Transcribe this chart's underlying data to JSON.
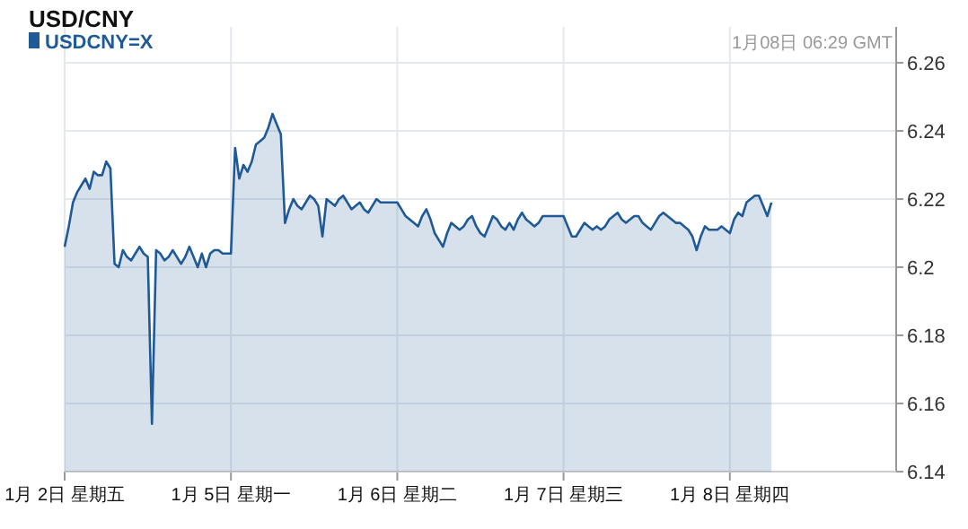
{
  "chart_data": {
    "type": "area",
    "title": "USD/CNY",
    "annotations": [
      "1月08日 06:29 GMT"
    ],
    "categories": [
      "1月  2日  星期五",
      null,
      null,
      null,
      null,
      null,
      null,
      null,
      null,
      null,
      null,
      null,
      null,
      null,
      null,
      null,
      null,
      null,
      null,
      null,
      null,
      null,
      null,
      null,
      null,
      null,
      null,
      null,
      null,
      null,
      null,
      null,
      null,
      null,
      null,
      null,
      null,
      null,
      null,
      null,
      "1月  5日  星期一",
      null,
      null,
      null,
      null,
      null,
      null,
      null,
      null,
      null,
      null,
      null,
      null,
      null,
      null,
      null,
      null,
      null,
      null,
      null,
      null,
      null,
      null,
      null,
      null,
      null,
      null,
      null,
      null,
      null,
      null,
      null,
      null,
      null,
      null,
      null,
      null,
      null,
      null,
      null,
      "1月  6日  星期二",
      null,
      null,
      null,
      null,
      null,
      null,
      null,
      null,
      null,
      null,
      null,
      null,
      null,
      null,
      null,
      null,
      null,
      null,
      null,
      null,
      null,
      null,
      null,
      null,
      null,
      null,
      null,
      null,
      null,
      null,
      null,
      null,
      null,
      null,
      null,
      null,
      null,
      null,
      null,
      "1月  7日  星期三",
      null,
      null,
      null,
      null,
      null,
      null,
      null,
      null,
      null,
      null,
      null,
      null,
      null,
      null,
      null,
      null,
      null,
      null,
      null,
      null,
      null,
      null,
      null,
      null,
      null,
      null,
      null,
      null,
      null,
      null,
      null,
      null,
      null,
      null,
      null,
      null,
      null,
      null,
      null,
      "1月  8日  星期四",
      null,
      null,
      null,
      null,
      null,
      null,
      null,
      null,
      null,
      null,
      null,
      null,
      null,
      null,
      null,
      null,
      null,
      null,
      null,
      null,
      null,
      null,
      null,
      null,
      null,
      null,
      null,
      null,
      null,
      null,
      null,
      null,
      null,
      null,
      null,
      null,
      null,
      null,
      null,
      null
    ],
    "ylim": [
      6.14,
      6.26
    ],
    "yticks": [
      6.14,
      6.16,
      6.18,
      6.2,
      6.22,
      6.24,
      6.26
    ],
    "grid": true,
    "legend": "top left",
    "series": [
      {
        "name": "USDCNY=X",
        "color": "#1f5a96",
        "values": [
          6.206,
          6.212,
          6.219,
          6.222,
          6.224,
          6.226,
          6.223,
          6.228,
          6.227,
          6.227,
          6.231,
          6.229,
          6.201,
          6.2,
          6.205,
          6.203,
          6.202,
          6.204,
          6.206,
          6.204,
          6.203,
          6.154,
          6.205,
          6.204,
          6.202,
          6.203,
          6.205,
          6.203,
          6.201,
          6.203,
          6.206,
          6.203,
          6.2,
          6.204,
          6.2,
          6.204,
          6.205,
          6.205,
          6.204,
          6.204,
          6.204,
          6.235,
          6.226,
          6.23,
          6.228,
          6.231,
          6.236,
          6.237,
          6.238,
          6.241,
          6.245,
          6.242,
          6.239,
          6.213,
          6.217,
          6.22,
          6.218,
          6.217,
          6.219,
          6.221,
          6.22,
          6.218,
          6.209,
          6.22,
          6.219,
          6.218,
          6.22,
          6.221,
          6.219,
          6.217,
          6.218,
          6.219,
          6.217,
          6.216,
          6.218,
          6.22,
          6.219,
          6.219,
          6.219,
          6.219,
          6.219,
          6.217,
          6.215,
          6.214,
          6.213,
          6.212,
          6.215,
          6.217,
          6.214,
          6.21,
          6.208,
          6.206,
          6.21,
          6.213,
          6.212,
          6.211,
          6.212,
          6.214,
          6.215,
          6.212,
          6.21,
          6.209,
          6.212,
          6.215,
          6.214,
          6.212,
          6.211,
          6.213,
          6.211,
          6.214,
          6.216,
          6.214,
          6.213,
          6.212,
          6.213,
          6.215,
          6.215,
          6.215,
          6.215,
          6.215,
          6.215,
          6.212,
          6.209,
          6.209,
          6.211,
          6.213,
          6.212,
          6.211,
          6.212,
          6.211,
          6.212,
          6.214,
          6.215,
          6.216,
          6.214,
          6.213,
          6.214,
          6.215,
          6.215,
          6.213,
          6.212,
          6.211,
          6.213,
          6.215,
          6.216,
          6.215,
          6.214,
          6.213,
          6.213,
          6.212,
          6.211,
          6.209,
          6.205,
          6.209,
          6.212,
          6.211,
          6.211,
          6.211,
          6.212,
          6.211,
          6.21,
          6.214,
          6.216,
          6.215,
          6.219,
          6.22,
          6.221,
          6.221,
          6.218,
          6.215,
          6.219,
          null,
          null,
          null,
          null,
          null,
          null,
          null,
          null,
          null,
          null,
          null,
          null,
          null,
          null,
          null,
          null,
          null,
          null,
          null,
          null,
          null,
          null,
          null,
          null,
          null,
          null,
          null,
          null,
          null,
          null
        ]
      }
    ]
  }
}
